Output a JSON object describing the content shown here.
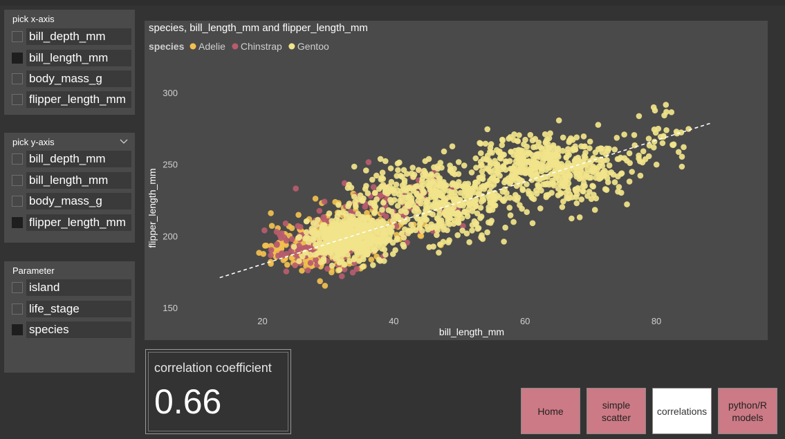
{
  "x_picker": {
    "title": "pick x-axis",
    "items": [
      {
        "label": "bill_depth_mm",
        "checked": false
      },
      {
        "label": "bill_length_mm",
        "checked": true
      },
      {
        "label": "body_mass_g",
        "checked": false
      },
      {
        "label": "flipper_length_mm",
        "checked": false
      }
    ]
  },
  "y_picker": {
    "title": "pick y-axis",
    "items": [
      {
        "label": "bill_depth_mm",
        "checked": false
      },
      {
        "label": "bill_length_mm",
        "checked": false
      },
      {
        "label": "body_mass_g",
        "checked": false
      },
      {
        "label": "flipper_length_mm",
        "checked": true
      }
    ]
  },
  "parameter_picker": {
    "title": "Parameter",
    "items": [
      {
        "label": "island",
        "checked": false
      },
      {
        "label": "life_stage",
        "checked": false
      },
      {
        "label": "species",
        "checked": true
      }
    ]
  },
  "icons": {
    "dropdown": "chevron-down-icon"
  },
  "colors": {
    "adelie": "#F2C04F",
    "chinstrap": "#B85C6E",
    "gentoo": "#F1E48A",
    "trend": "#ffffff"
  },
  "chart_data": {
    "type": "scatter",
    "title": "species, bill_length_mm and flipper_length_mm",
    "xlabel": "bill_length_mm",
    "ylabel": "flipper_length_mm",
    "legend_title": "species",
    "legend_position": "top-left",
    "xlim": [
      13,
      90
    ],
    "ylim": [
      140,
      312
    ],
    "xticks": [
      20,
      40,
      60,
      80
    ],
    "yticks": [
      150,
      200,
      250,
      300
    ],
    "grid": false,
    "trendline": {
      "x": [
        13.5,
        88.5
      ],
      "y": [
        171,
        279
      ],
      "style": "dashed"
    },
    "series": [
      {
        "name": "Adelie",
        "clusters": [
          {
            "x": 28,
            "y": 190,
            "sx": 6,
            "sy": 13,
            "n": 220
          },
          {
            "x": 34,
            "y": 205,
            "sx": 8,
            "sy": 15,
            "n": 110
          }
        ]
      },
      {
        "name": "Chinstrap",
        "clusters": [
          {
            "x": 29,
            "y": 194,
            "sx": 6,
            "sy": 15,
            "n": 160
          },
          {
            "x": 40,
            "y": 220,
            "sx": 11,
            "sy": 20,
            "n": 70
          }
        ]
      },
      {
        "name": "Gentoo",
        "clusters": [
          {
            "x": 33,
            "y": 198,
            "sx": 5,
            "sy": 12,
            "n": 500
          },
          {
            "x": 46,
            "y": 225,
            "sx": 10,
            "sy": 22,
            "n": 500
          },
          {
            "x": 64,
            "y": 248,
            "sx": 9,
            "sy": 20,
            "n": 500
          },
          {
            "x": 80,
            "y": 266,
            "sx": 5,
            "sy": 18,
            "n": 40
          }
        ]
      }
    ],
    "series_note": "points summarized as clusters (center, spread, count) read off the plot"
  },
  "correlation": {
    "title": "correlation coefficient",
    "value": "0.66"
  },
  "nav": [
    {
      "label": "Home",
      "active": false
    },
    {
      "label": "simple scatter",
      "active": false
    },
    {
      "label": "correlations",
      "active": true
    },
    {
      "label": "python/R models",
      "active": false
    }
  ]
}
